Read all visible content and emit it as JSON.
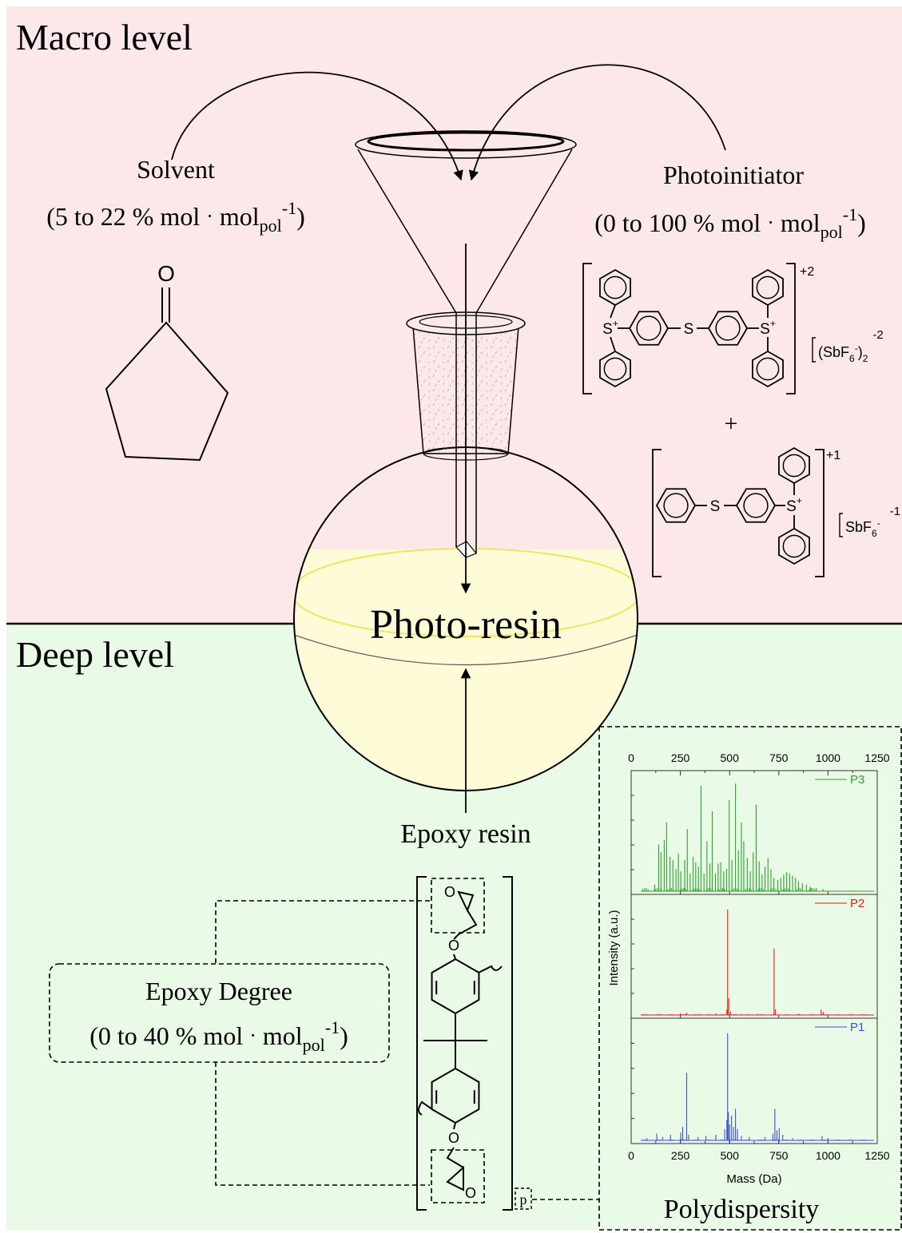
{
  "panels": {
    "macro_title": "Macro level",
    "deep_title": "Deep level",
    "macro_bg": "#fce8e8",
    "deep_bg": "#e9fbe6",
    "resin_fill": "#fdfbd8",
    "resin_edge": "#f0e460"
  },
  "solvent": {
    "label": "Solvent",
    "amount_prefix": "(5 to 22 % mol",
    "dot": "·",
    "unit_base": "mol",
    "unit_sub": "pol",
    "unit_sup": "-1",
    "close": ")",
    "atom_o": "O"
  },
  "photoinitiator": {
    "label": "Photoinitiator",
    "amount_prefix": "(0 to 100 % mol",
    "dot": "·",
    "unit_base": "mol",
    "unit_sub": "pol",
    "unit_sup": "-1",
    "close": ")",
    "s_plus": "S",
    "s_plus_sup": "+",
    "s_plain": "S",
    "charge_top": "+2",
    "charge_bottom": "+1",
    "anion_top_text": "(SbF",
    "anion_top_sub": "6",
    "anion_top_sup": "-",
    "anion_top_close": ")",
    "anion_top_sub2": "2",
    "anion_top_charge": "-2",
    "anion_bottom_text": "SbF",
    "anion_bottom_sub": "6",
    "anion_bottom_sup": "-",
    "anion_bottom_charge": "-1",
    "plus": "+"
  },
  "flask": {
    "label": "Photo-resin"
  },
  "epoxy": {
    "label": "Epoxy resin",
    "degree_label": "Epoxy Degree",
    "degree_prefix": "(0 to 40 % mol",
    "dot": "·",
    "unit_base": "mol",
    "unit_sub": "pol",
    "unit_sup": "-1",
    "close": ")",
    "atom_o": "O",
    "repeat": "p"
  },
  "polydispersity": {
    "label": "Polydispersity",
    "xlabel": "Mass (Da)",
    "ylabel": "Intensity (a.u.)"
  },
  "chart_data": {
    "type": "line",
    "title": "",
    "xlabel": "Mass (Da)",
    "ylabel": "Intensity (a.u.)",
    "xlim": [
      0,
      1250
    ],
    "xticks": [
      0,
      250,
      500,
      750,
      1000,
      1250
    ],
    "grid": false,
    "legend": "top-right (one per panel)",
    "series": [
      {
        "name": "P3",
        "color": "#2ea02e",
        "peaks": [
          [
            120,
            0.06
          ],
          [
            140,
            0.42
          ],
          [
            152,
            0.35
          ],
          [
            168,
            0.46
          ],
          [
            180,
            0.62
          ],
          [
            197,
            0.31
          ],
          [
            212,
            0.28
          ],
          [
            228,
            0.2
          ],
          [
            240,
            0.34
          ],
          [
            252,
            0.18
          ],
          [
            272,
            0.28
          ],
          [
            285,
            0.56
          ],
          [
            300,
            0.16
          ],
          [
            315,
            0.31
          ],
          [
            328,
            0.26
          ],
          [
            342,
            0.22
          ],
          [
            355,
            0.95
          ],
          [
            370,
            0.16
          ],
          [
            385,
            0.45
          ],
          [
            400,
            0.25
          ],
          [
            412,
            0.72
          ],
          [
            428,
            0.16
          ],
          [
            442,
            0.25
          ],
          [
            455,
            0.26
          ],
          [
            470,
            0.18
          ],
          [
            485,
            0.2
          ],
          [
            498,
            0.82
          ],
          [
            512,
            0.28
          ],
          [
            530,
            0.97
          ],
          [
            545,
            0.37
          ],
          [
            560,
            0.62
          ],
          [
            572,
            0.45
          ],
          [
            590,
            0.3
          ],
          [
            605,
            0.18
          ],
          [
            620,
            0.35
          ],
          [
            635,
            0.78
          ],
          [
            650,
            0.27
          ],
          [
            665,
            0.15
          ],
          [
            680,
            0.22
          ],
          [
            695,
            0.3
          ],
          [
            710,
            0.2
          ],
          [
            725,
            0.12
          ],
          [
            745,
            0.1
          ],
          [
            760,
            0.12
          ],
          [
            775,
            0.15
          ],
          [
            790,
            0.17
          ],
          [
            805,
            0.16
          ],
          [
            820,
            0.14
          ],
          [
            835,
            0.12
          ],
          [
            850,
            0.09
          ],
          [
            870,
            0.07
          ],
          [
            890,
            0.06
          ],
          [
            910,
            0.04
          ],
          [
            940,
            0.03
          ],
          [
            975,
            0.02
          ]
        ]
      },
      {
        "name": "P2",
        "color": "#e41a1c",
        "peaks": [
          [
            150,
            0.01
          ],
          [
            250,
            0.015
          ],
          [
            282,
            0.02
          ],
          [
            350,
            0.01
          ],
          [
            430,
            0.015
          ],
          [
            486,
            0.05
          ],
          [
            490,
            0.95
          ],
          [
            496,
            0.15
          ],
          [
            505,
            0.03
          ],
          [
            560,
            0.01
          ],
          [
            640,
            0.01
          ],
          [
            726,
            0.6
          ],
          [
            733,
            0.05
          ],
          [
            850,
            0.01
          ],
          [
            965,
            0.05
          ],
          [
            975,
            0.03
          ]
        ]
      },
      {
        "name": "P1",
        "color": "#3a4fd8",
        "peaks": [
          [
            80,
            0.02
          ],
          [
            130,
            0.06
          ],
          [
            160,
            0.03
          ],
          [
            200,
            0.05
          ],
          [
            252,
            0.07
          ],
          [
            262,
            0.12
          ],
          [
            282,
            0.6
          ],
          [
            292,
            0.05
          ],
          [
            340,
            0.03
          ],
          [
            380,
            0.04
          ],
          [
            430,
            0.05
          ],
          [
            475,
            0.1
          ],
          [
            486,
            0.18
          ],
          [
            490,
            0.95
          ],
          [
            494,
            0.25
          ],
          [
            500,
            0.14
          ],
          [
            510,
            0.22
          ],
          [
            520,
            0.12
          ],
          [
            530,
            0.28
          ],
          [
            540,
            0.1
          ],
          [
            560,
            0.04
          ],
          [
            600,
            0.03
          ],
          [
            680,
            0.03
          ],
          [
            720,
            0.06
          ],
          [
            730,
            0.28
          ],
          [
            740,
            0.09
          ],
          [
            752,
            0.11
          ],
          [
            770,
            0.05
          ],
          [
            820,
            0.02
          ],
          [
            970,
            0.04
          ],
          [
            1000,
            0.02
          ]
        ]
      }
    ]
  }
}
